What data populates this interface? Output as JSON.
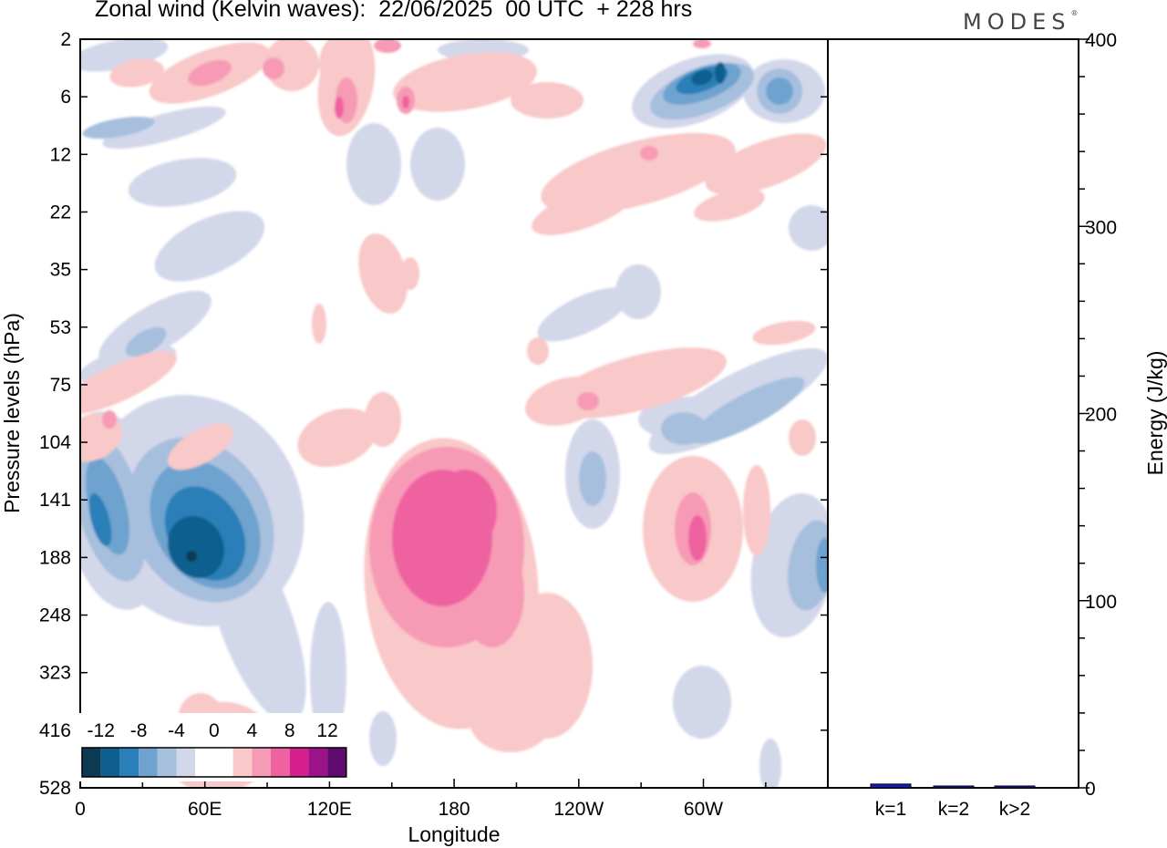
{
  "title": "Zonal wind (Kelvin waves):  22/06/2025  00 UTC  + 228 hrs",
  "brand": "MODES",
  "brand_mark": "®",
  "colors": {
    "blue_scale": [
      "#0b3a52",
      "#0e5f8f",
      "#2a7fb8",
      "#6ea3cf",
      "#a6bfdd",
      "#d3d7ea"
    ],
    "neutral": "#ffffff",
    "red_scale": [
      "#f9c8c8",
      "#f79ab6",
      "#ef62a0",
      "#d51f8d",
      "#9c1288",
      "#5e0a6e"
    ],
    "bar": "#1a1ab5"
  },
  "chart_data": [
    {
      "type": "heatmap",
      "title": "Zonal wind (Kelvin waves):  22/06/2025  00 UTC  + 228 hrs",
      "xlabel": "Longitude",
      "ylabel": "Pressure levels (hPa)",
      "x_ticks": [
        "0",
        "60E",
        "120E",
        "180",
        "120W",
        "60W"
      ],
      "y_ticks": [
        "2",
        "6",
        "12",
        "22",
        "35",
        "53",
        "75",
        "104",
        "141",
        "188",
        "248",
        "323",
        "416",
        "528"
      ],
      "colorbar_labels": [
        "-12",
        "-8",
        "-4",
        "0",
        "4",
        "8",
        "12"
      ],
      "features": [
        {
          "lon": 57,
          "level": 188,
          "value": -14
        },
        {
          "lon": 15,
          "level": 155,
          "value": -9
        },
        {
          "lon": 180,
          "level": 165,
          "value": 9
        },
        {
          "lon": 297,
          "level": 175,
          "value": 5
        },
        {
          "lon": 300,
          "level": 4,
          "value": -10
        },
        {
          "lon": 330,
          "level": 8,
          "value": -6
        },
        {
          "lon": 360,
          "level": 188,
          "value": -7
        },
        {
          "lon": 130,
          "level": 4,
          "value": 5
        },
        {
          "lon": 240,
          "level": 90,
          "value": 5
        },
        {
          "lon": 310,
          "level": 100,
          "value": -5
        }
      ]
    },
    {
      "type": "bar",
      "ylabel": "Energy (J/kg)",
      "categories": [
        "k=1",
        "k=2",
        "k>2"
      ],
      "values": [
        2,
        0.5,
        0.5
      ],
      "ylim": [
        0,
        400
      ],
      "y_ticks": [
        "0",
        "100",
        "200",
        "300",
        "400"
      ]
    }
  ]
}
